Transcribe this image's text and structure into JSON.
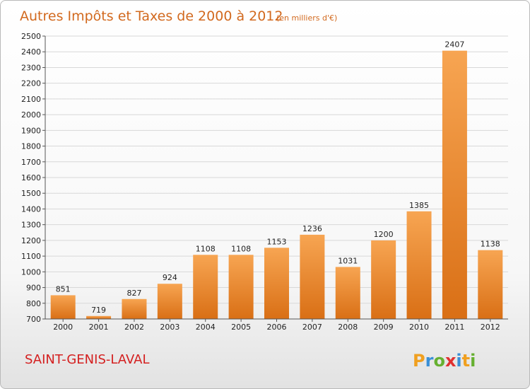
{
  "chart_data": {
    "type": "bar",
    "title": "Autres Impôts et Taxes de 2000 à 2012",
    "subtitle": "(en milliers d'€)",
    "categories": [
      "2000",
      "2001",
      "2002",
      "2003",
      "2004",
      "2005",
      "2006",
      "2007",
      "2008",
      "2009",
      "2010",
      "2011",
      "2012"
    ],
    "values": [
      851,
      719,
      827,
      924,
      1108,
      1108,
      1153,
      1236,
      1031,
      1200,
      1385,
      2407,
      1138
    ],
    "ylim": [
      700,
      2500
    ],
    "yticks": [
      "700",
      "800",
      "900",
      "1000",
      "1100",
      "1200",
      "1300",
      "1400",
      "1500",
      "1600",
      "1700",
      "1800",
      "1900",
      "2000",
      "2100",
      "2200",
      "2300",
      "2400",
      "2500"
    ],
    "grid": true,
    "colors": {
      "bar_light": "#f7a552",
      "bar_dark": "#d96f15",
      "title": "#d2691e",
      "grid": "#d8d8d8"
    }
  },
  "footer": {
    "city": "SAINT-GENIS-LAVAL",
    "logo": {
      "letters": [
        "P",
        "r",
        "o",
        "x",
        "i",
        "t",
        "i"
      ],
      "colors": [
        "#f0a020",
        "#3a8fd6",
        "#66b030",
        "#e03030",
        "#3a8fd6",
        "#f0a020",
        "#66b030"
      ]
    }
  }
}
